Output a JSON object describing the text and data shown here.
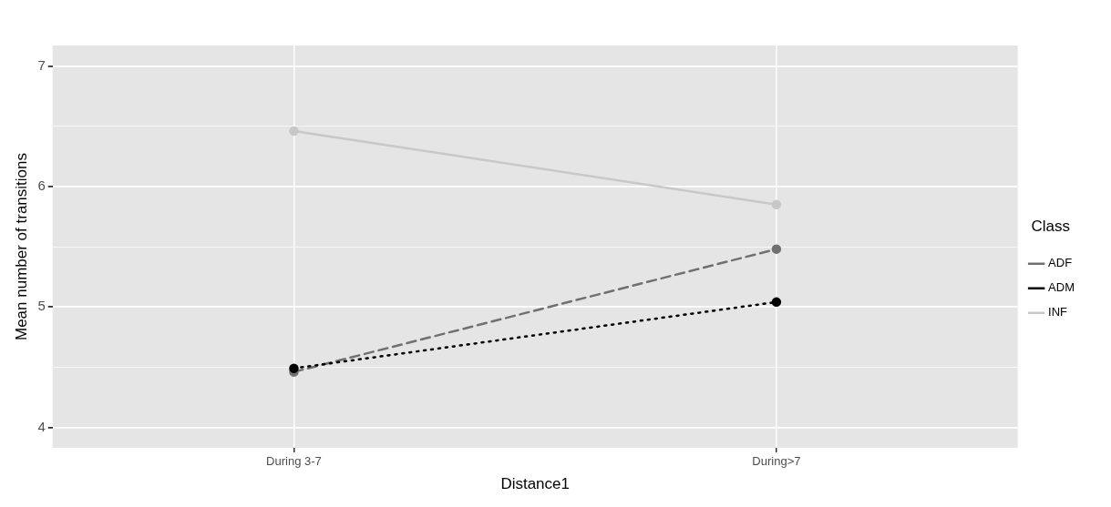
{
  "chart_data": {
    "type": "line",
    "xlabel": "Distance1",
    "ylabel": "Mean number of transitions",
    "legend_title": "Class",
    "legend": "right",
    "grid": true,
    "marker": "circle",
    "categories": [
      "During 3-7",
      "During>7"
    ],
    "ylim": [
      3.83,
      7.17
    ],
    "yticks": [
      4,
      {
        "value": 4.5,
        "label": null
      },
      5,
      {
        "value": 5.5,
        "label": null
      },
      6,
      {
        "value": 6.5,
        "label": null
      },
      7
    ],
    "series": [
      {
        "name": "ADF",
        "color": "#707070",
        "line_style": "dashed",
        "values": [
          4.46,
          5.48
        ]
      },
      {
        "name": "ADM",
        "color": "#000000",
        "line_style": "dotted",
        "values": [
          4.49,
          5.04
        ]
      },
      {
        "name": "INF",
        "color": "#c8c8c8",
        "line_style": "solid",
        "values": [
          6.46,
          5.85
        ]
      }
    ]
  }
}
